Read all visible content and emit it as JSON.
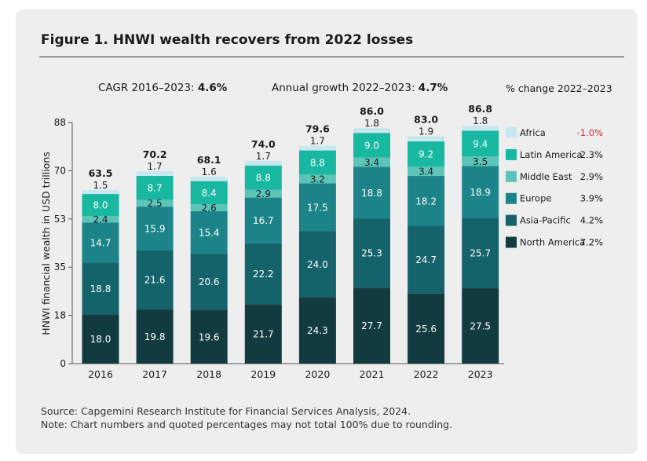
{
  "figure": {
    "title": "Figure 1. HNWI wealth recovers from 2022 losses",
    "cagr_label": "CAGR 2016–2023:",
    "cagr_value": "4.6%",
    "growth_label": "Annual growth 2022–2023:",
    "growth_value": "4.7%",
    "pct_change_header": "% change 2022–2023",
    "source": "Source: Capgemini Research Institute for Financial Services Analysis, 2024.",
    "note": "Note: Chart numbers and quoted percentages may not total 100% due to rounding."
  },
  "chart_data": {
    "type": "bar",
    "stacked": true,
    "ylabel": "HNWI financial wealth in USD trillions",
    "ylim": [
      0,
      88
    ],
    "yticks": [
      "0",
      "18",
      "35",
      "53",
      "70",
      "88"
    ],
    "categories": [
      "2016",
      "2017",
      "2018",
      "2019",
      "2020",
      "2021",
      "2022",
      "2023"
    ],
    "totals": [
      "63.5",
      "70.2",
      "68.1",
      "74.0",
      "79.6",
      "86.0",
      "83.0",
      "86.8"
    ],
    "series": [
      {
        "name": "North America",
        "color": "#123b3f",
        "text_color": "#ffffff",
        "change": "7.2%",
        "change_color": "#1a1a1a",
        "values": [
          18.0,
          19.8,
          19.6,
          21.7,
          24.3,
          27.7,
          25.6,
          27.5
        ],
        "labels": [
          "18.0",
          "19.8",
          "19.6",
          "21.7",
          "24.3",
          "27.7",
          "25.6",
          "27.5"
        ]
      },
      {
        "name": "Asia-Pacific",
        "color": "#14636b",
        "text_color": "#ffffff",
        "change": "4.2%",
        "change_color": "#1a1a1a",
        "values": [
          18.8,
          21.6,
          20.6,
          22.2,
          24.0,
          25.3,
          24.7,
          25.7
        ],
        "labels": [
          "18.8",
          "21.6",
          "20.6",
          "22.2",
          "24.0",
          "25.3",
          "24.7",
          "25.7"
        ]
      },
      {
        "name": "Europe",
        "color": "#1c8489",
        "text_color": "#ffffff",
        "change": "3.9%",
        "change_color": "#1a1a1a",
        "values": [
          14.7,
          15.9,
          15.4,
          16.7,
          17.5,
          18.8,
          18.2,
          18.9
        ],
        "labels": [
          "14.7",
          "15.9",
          "15.4",
          "16.7",
          "17.5",
          "18.8",
          "18.2",
          "18.9"
        ]
      },
      {
        "name": "Middle East",
        "color": "#5cc4b8",
        "text_color": "#1a1a1a",
        "change": "2.9%",
        "change_color": "#1a1a1a",
        "values": [
          2.4,
          2.5,
          2.6,
          2.9,
          3.2,
          3.4,
          3.4,
          3.5
        ],
        "labels": [
          "2.4",
          "2.5",
          "2.6",
          "2.9",
          "3.2",
          "3.4",
          "3.4",
          "3.5"
        ]
      },
      {
        "name": "Latin America",
        "color": "#17b7a0",
        "text_color": "#ffffff",
        "change": "2.3%",
        "change_color": "#1a1a1a",
        "values": [
          8.0,
          8.7,
          8.4,
          8.8,
          8.8,
          9.0,
          9.2,
          9.4
        ],
        "labels": [
          "8.0",
          "8.7",
          "8.4",
          "8.8",
          "8.8",
          "9.0",
          "9.2",
          "9.4"
        ]
      },
      {
        "name": "Africa",
        "color": "#c6e8ee",
        "text_color": "#1a1a1a",
        "change": "-1.0%",
        "change_color": "#e0242a",
        "values": [
          1.5,
          1.7,
          1.6,
          1.7,
          1.7,
          1.8,
          1.9,
          1.8
        ],
        "labels": [
          "1.5",
          "1.7",
          "1.6",
          "1.7",
          "1.7",
          "1.8",
          "1.9",
          "1.8"
        ]
      }
    ]
  }
}
